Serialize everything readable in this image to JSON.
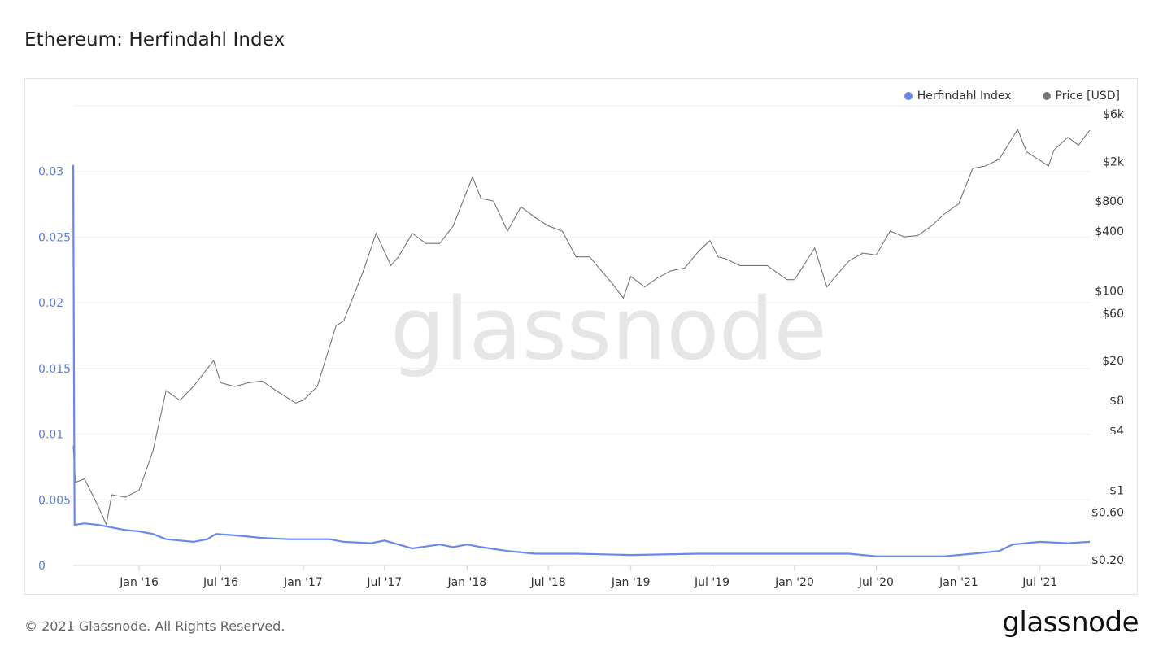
{
  "title": "Ethereum: Herfindahl Index",
  "footer": {
    "copyright": "© 2021 Glassnode. All Rights Reserved.",
    "brand": "glassnode"
  },
  "watermark": "glassnode",
  "colors": {
    "herfindahl": "#6a89e8",
    "price": "#777777",
    "grid": "#eeeeee",
    "left_axis_text": "#5f7fd8",
    "right_axis_text": "#333333"
  },
  "legend": [
    {
      "label": "Herfindahl Index",
      "color": "#6a89e8"
    },
    {
      "label": "Price [USD]",
      "color": "#777777"
    }
  ],
  "chart_data": {
    "type": "line",
    "title": "Ethereum: Herfindahl Index",
    "x_ticks": [
      "Jan '16",
      "Jul '16",
      "Jan '17",
      "Jul '17",
      "Jan '18",
      "Jul '18",
      "Jan '19",
      "Jul '19",
      "Jan '20",
      "Jul '20",
      "Jan '21",
      "Jul '21"
    ],
    "y_left": {
      "ticks": [
        "0",
        "0.005",
        "0.01",
        "0.015",
        "0.02",
        "0.025",
        "0.03"
      ],
      "range": [
        0,
        0.035
      ]
    },
    "y_right": {
      "scale": "log",
      "ticks": [
        "$0.20",
        "$0.60",
        "$1",
        "$4",
        "$8",
        "$20",
        "$60",
        "$100",
        "$400",
        "$800",
        "$2k",
        "$6k"
      ]
    },
    "grid": true,
    "legend_position": "top-right",
    "series": [
      {
        "name": "Herfindahl Index",
        "axis": "left",
        "points": [
          [
            "2015-08-07",
            0.0305
          ],
          [
            "2015-08-10",
            0.0031
          ],
          [
            "2015-09-01",
            0.0032
          ],
          [
            "2015-10-01",
            0.0031
          ],
          [
            "2015-11-01",
            0.0029
          ],
          [
            "2015-12-01",
            0.0027
          ],
          [
            "2016-01-01",
            0.0026
          ],
          [
            "2016-02-01",
            0.0024
          ],
          [
            "2016-03-01",
            0.002
          ],
          [
            "2016-04-01",
            0.0019
          ],
          [
            "2016-05-01",
            0.0018
          ],
          [
            "2016-06-01",
            0.002
          ],
          [
            "2016-06-20",
            0.0024
          ],
          [
            "2016-08-01",
            0.0023
          ],
          [
            "2016-09-01",
            0.0022
          ],
          [
            "2016-10-01",
            0.0021
          ],
          [
            "2016-12-01",
            0.002
          ],
          [
            "2017-01-01",
            0.002
          ],
          [
            "2017-03-01",
            0.002
          ],
          [
            "2017-04-01",
            0.0018
          ],
          [
            "2017-06-01",
            0.0017
          ],
          [
            "2017-07-01",
            0.0019
          ],
          [
            "2017-08-01",
            0.0016
          ],
          [
            "2017-09-01",
            0.0013
          ],
          [
            "2017-11-01",
            0.0016
          ],
          [
            "2017-12-01",
            0.0014
          ],
          [
            "2018-01-01",
            0.0016
          ],
          [
            "2018-02-01",
            0.0014
          ],
          [
            "2018-04-01",
            0.0011
          ],
          [
            "2018-06-01",
            0.0009
          ],
          [
            "2018-09-01",
            0.0009
          ],
          [
            "2019-01-01",
            0.0008
          ],
          [
            "2019-06-01",
            0.0009
          ],
          [
            "2019-10-01",
            0.0009
          ],
          [
            "2020-01-01",
            0.0009
          ],
          [
            "2020-05-01",
            0.0009
          ],
          [
            "2020-07-01",
            0.0007
          ],
          [
            "2020-10-01",
            0.0007
          ],
          [
            "2020-12-01",
            0.0007
          ],
          [
            "2021-02-01",
            0.0009
          ],
          [
            "2021-04-01",
            0.0011
          ],
          [
            "2021-05-01",
            0.0016
          ],
          [
            "2021-07-01",
            0.0018
          ],
          [
            "2021-09-01",
            0.0017
          ],
          [
            "2021-10-20",
            0.0018
          ]
        ]
      },
      {
        "name": "Price [USD]",
        "axis": "right",
        "points": [
          [
            "2015-08-07",
            2.8
          ],
          [
            "2015-08-12",
            1.2
          ],
          [
            "2015-09-01",
            1.3
          ],
          [
            "2015-10-01",
            0.7
          ],
          [
            "2015-10-20",
            0.45
          ],
          [
            "2015-11-01",
            0.9
          ],
          [
            "2015-12-01",
            0.85
          ],
          [
            "2016-01-01",
            1.0
          ],
          [
            "2016-02-01",
            2.5
          ],
          [
            "2016-03-01",
            10.0
          ],
          [
            "2016-04-01",
            8.0
          ],
          [
            "2016-05-01",
            11.0
          ],
          [
            "2016-06-15",
            20.0
          ],
          [
            "2016-07-01",
            12.0
          ],
          [
            "2016-08-01",
            11.0
          ],
          [
            "2016-09-01",
            12.0
          ],
          [
            "2016-10-01",
            12.5
          ],
          [
            "2016-11-01",
            10.0
          ],
          [
            "2016-12-15",
            7.5
          ],
          [
            "2017-01-01",
            8.0
          ],
          [
            "2017-02-01",
            11.0
          ],
          [
            "2017-03-15",
            45.0
          ],
          [
            "2017-04-01",
            50.0
          ],
          [
            "2017-05-15",
            160.0
          ],
          [
            "2017-06-12",
            380.0
          ],
          [
            "2017-07-15",
            180.0
          ],
          [
            "2017-08-01",
            220.0
          ],
          [
            "2017-09-01",
            380.0
          ],
          [
            "2017-10-01",
            300.0
          ],
          [
            "2017-11-01",
            300.0
          ],
          [
            "2017-12-01",
            450.0
          ],
          [
            "2018-01-13",
            1400.0
          ],
          [
            "2018-02-01",
            850.0
          ],
          [
            "2018-03-01",
            800.0
          ],
          [
            "2018-04-01",
            400.0
          ],
          [
            "2018-05-01",
            700.0
          ],
          [
            "2018-06-01",
            550.0
          ],
          [
            "2018-07-01",
            450.0
          ],
          [
            "2018-08-01",
            400.0
          ],
          [
            "2018-09-01",
            220.0
          ],
          [
            "2018-10-01",
            220.0
          ],
          [
            "2018-11-20",
            120.0
          ],
          [
            "2018-12-15",
            85.0
          ],
          [
            "2019-01-01",
            140.0
          ],
          [
            "2019-02-01",
            110.0
          ],
          [
            "2019-03-01",
            135.0
          ],
          [
            "2019-04-01",
            160.0
          ],
          [
            "2019-05-01",
            170.0
          ],
          [
            "2019-06-01",
            250.0
          ],
          [
            "2019-06-26",
            320.0
          ],
          [
            "2019-07-15",
            220.0
          ],
          [
            "2019-08-01",
            210.0
          ],
          [
            "2019-09-01",
            180.0
          ],
          [
            "2019-10-01",
            180.0
          ],
          [
            "2019-11-01",
            180.0
          ],
          [
            "2019-12-15",
            130.0
          ],
          [
            "2020-01-01",
            130.0
          ],
          [
            "2020-02-15",
            270.0
          ],
          [
            "2020-03-13",
            110.0
          ],
          [
            "2020-04-01",
            140.0
          ],
          [
            "2020-05-01",
            200.0
          ],
          [
            "2020-06-01",
            240.0
          ],
          [
            "2020-07-01",
            230.0
          ],
          [
            "2020-08-01",
            400.0
          ],
          [
            "2020-09-01",
            350.0
          ],
          [
            "2020-10-01",
            360.0
          ],
          [
            "2020-11-01",
            450.0
          ],
          [
            "2020-12-01",
            600.0
          ],
          [
            "2021-01-01",
            750.0
          ],
          [
            "2021-02-01",
            1700.0
          ],
          [
            "2021-03-01",
            1800.0
          ],
          [
            "2021-04-01",
            2100.0
          ],
          [
            "2021-05-12",
            4200.0
          ],
          [
            "2021-06-01",
            2500.0
          ],
          [
            "2021-06-20",
            2200.0
          ],
          [
            "2021-07-20",
            1800.0
          ],
          [
            "2021-08-01",
            2600.0
          ],
          [
            "2021-09-01",
            3500.0
          ],
          [
            "2021-09-25",
            2900.0
          ],
          [
            "2021-10-10",
            3600.0
          ],
          [
            "2021-10-20",
            4100.0
          ]
        ]
      }
    ]
  }
}
